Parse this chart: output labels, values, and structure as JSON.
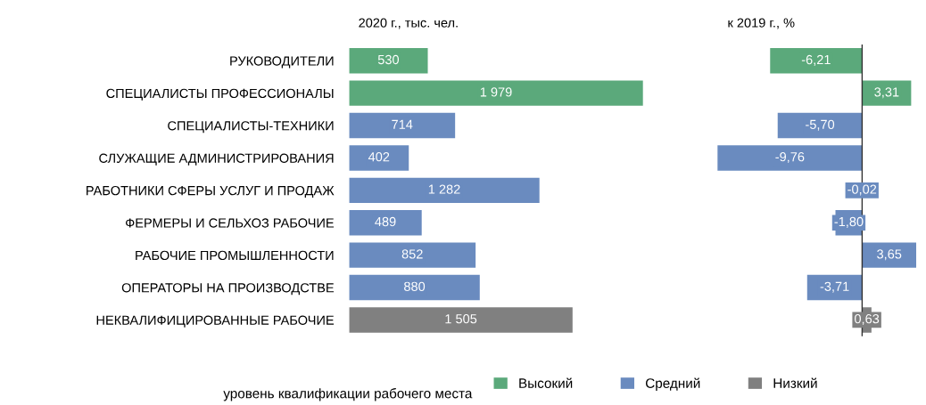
{
  "chart_data": [
    {
      "type": "bar",
      "orientation": "horizontal",
      "title": "2020 г., тыс. чел.",
      "legend": "bottom",
      "legend_title": "уровень квалификации рабочего места",
      "tick_labels": "y",
      "categories": [
        "РУКОВОДИТЕЛИ",
        "СПЕЦИАЛИСТЫ ПРОФЕССИОНАЛЫ",
        "СПЕЦИАЛИСТЫ-ТЕХНИКИ",
        "СЛУЖАЩИЕ АДМИНИСТРИРОВАНИЯ",
        "РАБОТНИКИ СФЕРЫ УСЛУГ И ПРОДАЖ",
        "ФЕРМЕРЫ И СЕЛЬХОЗ РАБОЧИЕ",
        "РАБОЧИЕ ПРОМЫШЛЕННОСТИ",
        "ОПЕРАТОРЫ НА ПРОИЗВОДСТВЕ",
        "НЕКВАЛИФИЦИРОВАННЫЕ РАБОЧИЕ"
      ],
      "series": [
        {
          "name": "Высокий",
          "color": "#5ba97b",
          "values": [
            530,
            1979,
            null,
            null,
            null,
            null,
            null,
            null,
            null
          ],
          "value_labels": [
            "530",
            "1 979",
            null,
            null,
            null,
            null,
            null,
            null,
            null
          ]
        },
        {
          "name": "Средний",
          "color": "#6a8bbf",
          "values": [
            null,
            null,
            714,
            402,
            1282,
            489,
            852,
            880,
            null
          ],
          "value_labels": [
            null,
            null,
            "714",
            "402",
            "1 282",
            "489",
            "852",
            "880",
            null
          ]
        },
        {
          "name": "Низкий",
          "color": "#808080",
          "values": [
            null,
            null,
            null,
            null,
            null,
            null,
            null,
            null,
            1505
          ],
          "value_labels": [
            null,
            null,
            null,
            null,
            null,
            null,
            null,
            null,
            "1 505"
          ]
        }
      ]
    },
    {
      "type": "bar",
      "orientation": "horizontal",
      "title": "к 2019 г., %",
      "series": [
        {
          "color": "#5ba97b",
          "values": [
            -6.21,
            3.31,
            null,
            null,
            null,
            null,
            null,
            null,
            null
          ],
          "value_labels": [
            "-6,21",
            "3,31",
            null,
            null,
            null,
            null,
            null,
            null,
            null
          ]
        },
        {
          "color": "#6a8bbf",
          "values": [
            null,
            null,
            -5.7,
            -9.76,
            -0.02,
            -1.8,
            3.65,
            -3.71,
            null
          ],
          "value_labels": [
            null,
            null,
            "-5,70",
            "-9,76",
            "-0,02",
            "-1,80",
            "3,65",
            "-3,71",
            null
          ]
        },
        {
          "color": "#808080",
          "values": [
            null,
            null,
            null,
            null,
            null,
            null,
            null,
            null,
            0.63
          ],
          "value_labels": [
            null,
            null,
            null,
            null,
            null,
            null,
            null,
            null,
            "0,63"
          ]
        }
      ]
    }
  ]
}
